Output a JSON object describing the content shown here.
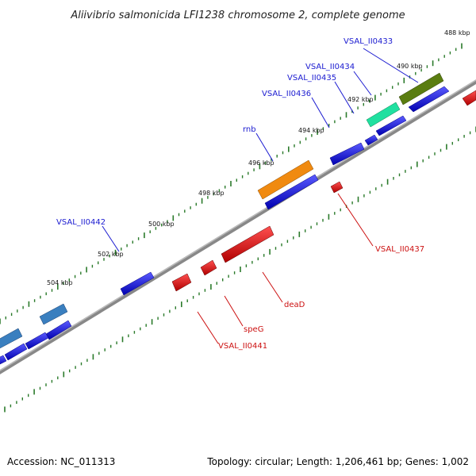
{
  "title": "Aliivibrio salmonicida LFI1238 chromosome 2, complete genome",
  "footer": {
    "accession": "Accession: NC_011313",
    "topology": "Topology: circular; Length: 1,206,461 bp; Genes: 1,002"
  },
  "scale_labels": [
    "488 kbp",
    "490 kbp",
    "492 kbp",
    "494 kbp",
    "496 kbp",
    "498 kbp",
    "500 kbp",
    "502 kbp",
    "504 kbp"
  ],
  "gene_labels": {
    "forward": [
      "VSAL_II0433",
      "VSAL_II0434",
      "VSAL_II0435",
      "VSAL_II0436",
      "rnb",
      "VSAL_II0442"
    ],
    "reverse": [
      "VSAL_II0437",
      "deaD",
      "speG",
      "VSAL_II0441"
    ]
  },
  "colors": {
    "forward_gene": "#1010e0",
    "reverse_gene": "#e00000",
    "highlight_green": "#5a7d10",
    "highlight_cyan": "#20e0a0",
    "highlight_orange": "#f08a10",
    "highlight_steel": "#3a7fbf",
    "backbone": "#777777",
    "ticks": "#2a7a2a"
  }
}
